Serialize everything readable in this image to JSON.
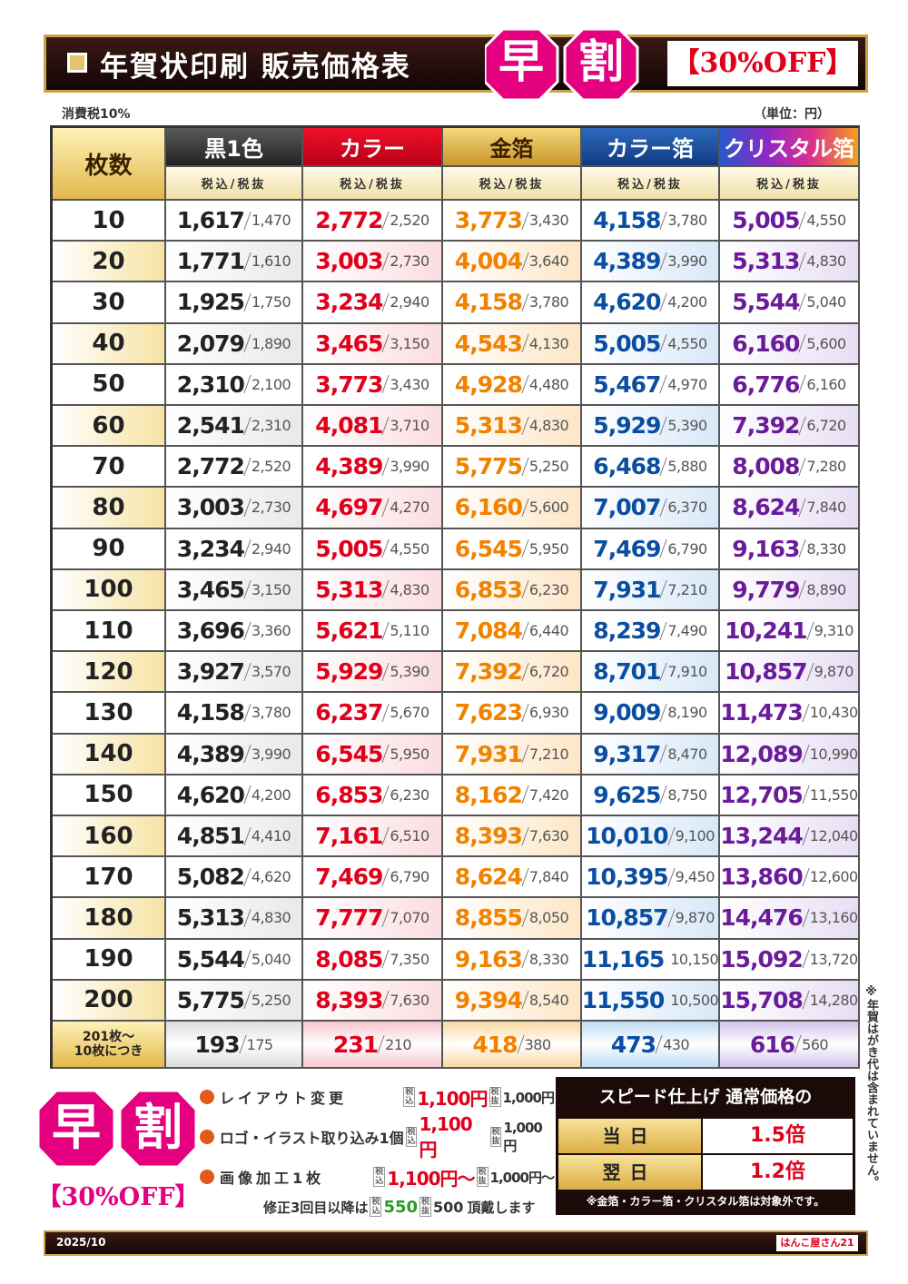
{
  "header": {
    "title": "年賀状印刷 販売価格表",
    "badge": [
      "早",
      "割"
    ],
    "discount": "【30%OFF】"
  },
  "notes": {
    "tax": "消費税10%",
    "unit": "（単位：円）",
    "side": "※年賀はがき代は含まれていません。"
  },
  "table": {
    "corner": "枚数",
    "columns": [
      {
        "name": "黒1色",
        "sub": "税込/税抜"
      },
      {
        "name": "カラー",
        "sub": "税込/税抜"
      },
      {
        "name": "金箔",
        "sub": "税込/税抜"
      },
      {
        "name": "カラー箔",
        "sub": "税込/税抜"
      },
      {
        "name": "クリスタル箔",
        "sub": "税込/税抜"
      }
    ],
    "rows": [
      {
        "qty": 10,
        "prices": [
          [
            "1,617",
            "1,470"
          ],
          [
            "2,772",
            "2,520"
          ],
          [
            "3,773",
            "3,430"
          ],
          [
            "4,158",
            "3,780"
          ],
          [
            "5,005",
            "4,550"
          ]
        ]
      },
      {
        "qty": 20,
        "prices": [
          [
            "1,771",
            "1,610"
          ],
          [
            "3,003",
            "2,730"
          ],
          [
            "4,004",
            "3,640"
          ],
          [
            "4,389",
            "3,990"
          ],
          [
            "5,313",
            "4,830"
          ]
        ]
      },
      {
        "qty": 30,
        "prices": [
          [
            "1,925",
            "1,750"
          ],
          [
            "3,234",
            "2,940"
          ],
          [
            "4,158",
            "3,780"
          ],
          [
            "4,620",
            "4,200"
          ],
          [
            "5,544",
            "5,040"
          ]
        ]
      },
      {
        "qty": 40,
        "prices": [
          [
            "2,079",
            "1,890"
          ],
          [
            "3,465",
            "3,150"
          ],
          [
            "4,543",
            "4,130"
          ],
          [
            "5,005",
            "4,550"
          ],
          [
            "6,160",
            "5,600"
          ]
        ]
      },
      {
        "qty": 50,
        "prices": [
          [
            "2,310",
            "2,100"
          ],
          [
            "3,773",
            "3,430"
          ],
          [
            "4,928",
            "4,480"
          ],
          [
            "5,467",
            "4,970"
          ],
          [
            "6,776",
            "6,160"
          ]
        ]
      },
      {
        "qty": 60,
        "prices": [
          [
            "2,541",
            "2,310"
          ],
          [
            "4,081",
            "3,710"
          ],
          [
            "5,313",
            "4,830"
          ],
          [
            "5,929",
            "5,390"
          ],
          [
            "7,392",
            "6,720"
          ]
        ]
      },
      {
        "qty": 70,
        "prices": [
          [
            "2,772",
            "2,520"
          ],
          [
            "4,389",
            "3,990"
          ],
          [
            "5,775",
            "5,250"
          ],
          [
            "6,468",
            "5,880"
          ],
          [
            "8,008",
            "7,280"
          ]
        ]
      },
      {
        "qty": 80,
        "prices": [
          [
            "3,003",
            "2,730"
          ],
          [
            "4,697",
            "4,270"
          ],
          [
            "6,160",
            "5,600"
          ],
          [
            "7,007",
            "6,370"
          ],
          [
            "8,624",
            "7,840"
          ]
        ]
      },
      {
        "qty": 90,
        "prices": [
          [
            "3,234",
            "2,940"
          ],
          [
            "5,005",
            "4,550"
          ],
          [
            "6,545",
            "5,950"
          ],
          [
            "7,469",
            "6,790"
          ],
          [
            "9,163",
            "8,330"
          ]
        ]
      },
      {
        "qty": 100,
        "prices": [
          [
            "3,465",
            "3,150"
          ],
          [
            "5,313",
            "4,830"
          ],
          [
            "6,853",
            "6,230"
          ],
          [
            "7,931",
            "7,210"
          ],
          [
            "9,779",
            "8,890"
          ]
        ]
      },
      {
        "qty": 110,
        "prices": [
          [
            "3,696",
            "3,360"
          ],
          [
            "5,621",
            "5,110"
          ],
          [
            "7,084",
            "6,440"
          ],
          [
            "8,239",
            "7,490"
          ],
          [
            "10,241",
            "9,310"
          ]
        ]
      },
      {
        "qty": 120,
        "prices": [
          [
            "3,927",
            "3,570"
          ],
          [
            "5,929",
            "5,390"
          ],
          [
            "7,392",
            "6,720"
          ],
          [
            "8,701",
            "7,910"
          ],
          [
            "10,857",
            "9,870"
          ]
        ]
      },
      {
        "qty": 130,
        "prices": [
          [
            "4,158",
            "3,780"
          ],
          [
            "6,237",
            "5,670"
          ],
          [
            "7,623",
            "6,930"
          ],
          [
            "9,009",
            "8,190"
          ],
          [
            "11,473",
            "10,430"
          ]
        ]
      },
      {
        "qty": 140,
        "prices": [
          [
            "4,389",
            "3,990"
          ],
          [
            "6,545",
            "5,950"
          ],
          [
            "7,931",
            "7,210"
          ],
          [
            "9,317",
            "8,470"
          ],
          [
            "12,089",
            "10,990"
          ]
        ]
      },
      {
        "qty": 150,
        "prices": [
          [
            "4,620",
            "4,200"
          ],
          [
            "6,853",
            "6,230"
          ],
          [
            "8,162",
            "7,420"
          ],
          [
            "9,625",
            "8,750"
          ],
          [
            "12,705",
            "11,550"
          ]
        ]
      },
      {
        "qty": 160,
        "prices": [
          [
            "4,851",
            "4,410"
          ],
          [
            "7,161",
            "6,510"
          ],
          [
            "8,393",
            "7,630"
          ],
          [
            "10,010",
            "9,100"
          ],
          [
            "13,244",
            "12,040"
          ]
        ]
      },
      {
        "qty": 170,
        "prices": [
          [
            "5,082",
            "4,620"
          ],
          [
            "7,469",
            "6,790"
          ],
          [
            "8,624",
            "7,840"
          ],
          [
            "10,395",
            "9,450"
          ],
          [
            "13,860",
            "12,600"
          ]
        ]
      },
      {
        "qty": 180,
        "prices": [
          [
            "5,313",
            "4,830"
          ],
          [
            "7,777",
            "7,070"
          ],
          [
            "8,855",
            "8,050"
          ],
          [
            "10,857",
            "9,870"
          ],
          [
            "14,476",
            "13,160"
          ]
        ]
      },
      {
        "qty": 190,
        "prices": [
          [
            "5,544",
            "5,040"
          ],
          [
            "8,085",
            "7,350"
          ],
          [
            "9,163",
            "8,330"
          ],
          [
            "11,165",
            "10,150"
          ],
          [
            "15,092",
            "13,720"
          ]
        ]
      },
      {
        "qty": 200,
        "prices": [
          [
            "5,775",
            "5,250"
          ],
          [
            "8,393",
            "7,630"
          ],
          [
            "9,394",
            "8,540"
          ],
          [
            "11,550",
            "10,500"
          ],
          [
            "15,708",
            "14,280"
          ]
        ]
      }
    ],
    "extra": {
      "qty": [
        "201枚～",
        "10枚につき"
      ],
      "prices": [
        [
          "193",
          "175"
        ],
        [
          "231",
          "210"
        ],
        [
          "418",
          "380"
        ],
        [
          "473",
          "430"
        ],
        [
          "616",
          "560"
        ]
      ]
    }
  },
  "options": {
    "items": [
      {
        "label": "レイアウト変更",
        "tax_in": "税込",
        "price_in": "1,100円",
        "tax_out": "税抜",
        "price_out": "1,000円"
      },
      {
        "label": "ロゴ・イラスト取り込み1個",
        "tax_in": "税込",
        "price_in": "1,100円",
        "tax_out": "税抜",
        "price_out": "1,000円"
      },
      {
        "label": "画像加工1枚",
        "tax_in": "税込",
        "price_in": "1,100円～",
        "tax_out": "税抜",
        "price_out": "1,000円～"
      }
    ],
    "revision": {
      "prefix": "修正3回目以降は",
      "tax_in": "税込",
      "price_in": "550",
      "tax_out": "税抜",
      "price_out": "500",
      "suffix": "頂戴します"
    }
  },
  "speed": {
    "title": "スピード仕上げ 通常価格の",
    "rows": [
      {
        "day": "当日",
        "rate": "1.5倍"
      },
      {
        "day": "翌日",
        "rate": "1.2倍"
      }
    ],
    "note": "※金箔・カラー箔・クリスタル箔は対象外です。"
  },
  "footer": {
    "date": "2025/10",
    "logo": "はんこ屋さん21"
  }
}
